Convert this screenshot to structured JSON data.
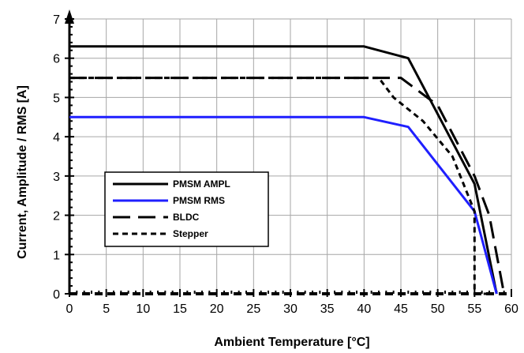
{
  "chart_data": {
    "type": "line",
    "title": "",
    "xlabel": "Ambient Temperature [°C]",
    "ylabel": "Current, Amplitude / RMS [A]",
    "xlim": [
      0,
      60
    ],
    "ylim": [
      0,
      7
    ],
    "x_ticks": [
      0,
      5,
      10,
      15,
      20,
      25,
      30,
      35,
      40,
      45,
      50,
      55,
      60
    ],
    "y_ticks": [
      0,
      1,
      2,
      3,
      4,
      5,
      6,
      7
    ],
    "x_tick_labels": [
      "0",
      "5",
      "10",
      "15",
      "20",
      "25",
      "30",
      "35",
      "40",
      "45",
      "50",
      "55",
      "60"
    ],
    "y_tick_labels": [
      "0",
      "1",
      "2",
      "3",
      "4",
      "5",
      "6",
      "7"
    ],
    "grid": true,
    "legend_position": "lower-left",
    "series": [
      {
        "name": "PMSM AMPL",
        "color": "#000000",
        "style": "solid",
        "x": [
          0,
          40,
          46,
          55,
          58
        ],
        "y": [
          6.3,
          6.3,
          6.0,
          2.8,
          0
        ]
      },
      {
        "name": "PMSM RMS",
        "color": "#1f1fff",
        "style": "solid",
        "x": [
          0,
          40,
          46,
          55,
          58
        ],
        "y": [
          4.5,
          4.5,
          4.25,
          2.1,
          0
        ]
      },
      {
        "name": "BLDC",
        "color": "#000000",
        "style": "long-dash",
        "x": [
          0,
          43,
          45,
          50,
          55,
          57,
          59
        ],
        "y": [
          5.5,
          5.5,
          5.5,
          4.8,
          3.0,
          2.0,
          0
        ]
      },
      {
        "name": "Stepper",
        "color": "#000000",
        "style": "short-dash",
        "x": [
          0,
          42,
          44,
          48,
          52,
          55,
          55,
          57
        ],
        "y": [
          5.5,
          5.5,
          5.0,
          4.4,
          3.5,
          2.1,
          0,
          0
        ]
      }
    ]
  }
}
